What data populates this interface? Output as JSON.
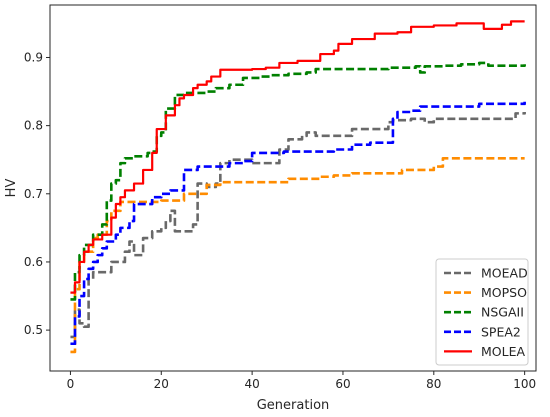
{
  "chart_data": {
    "type": "line",
    "xlabel": "Generation",
    "ylabel": "HV",
    "xlim": [
      -4.5,
      102.5
    ],
    "ylim": [
      0.44,
      0.977
    ],
    "xticks": [
      0,
      20,
      40,
      60,
      80,
      100
    ],
    "yticks": [
      0.5,
      0.6,
      0.7,
      0.8,
      0.9
    ],
    "grid": false,
    "legend_position": "bottom-right",
    "series": [
      {
        "name": "MOEAD",
        "color": "#696969",
        "style": "dashed",
        "points": [
          [
            0,
            0.49
          ],
          [
            1,
            0.53
          ],
          [
            2,
            0.51
          ],
          [
            3,
            0.505
          ],
          [
            4,
            0.575
          ],
          [
            5,
            0.585
          ],
          [
            8,
            0.585
          ],
          [
            9,
            0.6
          ],
          [
            12,
            0.615
          ],
          [
            13,
            0.63
          ],
          [
            14,
            0.61
          ],
          [
            16,
            0.635
          ],
          [
            18,
            0.645
          ],
          [
            20,
            0.65
          ],
          [
            21,
            0.66
          ],
          [
            22,
            0.675
          ],
          [
            23,
            0.645
          ],
          [
            25,
            0.645
          ],
          [
            27,
            0.655
          ],
          [
            28,
            0.715
          ],
          [
            30,
            0.71
          ],
          [
            32,
            0.715
          ],
          [
            33,
            0.745
          ],
          [
            35,
            0.75
          ],
          [
            38,
            0.75
          ],
          [
            40,
            0.745
          ],
          [
            42,
            0.745
          ],
          [
            44,
            0.745
          ],
          [
            46,
            0.765
          ],
          [
            48,
            0.78
          ],
          [
            51,
            0.785
          ],
          [
            52,
            0.79
          ],
          [
            54,
            0.785
          ],
          [
            60,
            0.785
          ],
          [
            62,
            0.795
          ],
          [
            68,
            0.795
          ],
          [
            70,
            0.805
          ],
          [
            71,
            0.808
          ],
          [
            75,
            0.81
          ],
          [
            78,
            0.805
          ],
          [
            80,
            0.81
          ],
          [
            95,
            0.81
          ],
          [
            98,
            0.818
          ],
          [
            100,
            0.82
          ]
        ]
      },
      {
        "name": "MOPSO",
        "color": "#ff8c00",
        "style": "dashed",
        "points": [
          [
            0,
            0.468
          ],
          [
            1,
            0.56
          ],
          [
            2,
            0.6
          ],
          [
            3,
            0.615
          ],
          [
            5,
            0.635
          ],
          [
            6,
            0.64
          ],
          [
            8,
            0.66
          ],
          [
            9,
            0.675
          ],
          [
            11,
            0.688
          ],
          [
            20,
            0.69
          ],
          [
            25,
            0.7
          ],
          [
            30,
            0.713
          ],
          [
            33,
            0.717
          ],
          [
            45,
            0.717
          ],
          [
            48,
            0.722
          ],
          [
            55,
            0.725
          ],
          [
            58,
            0.727
          ],
          [
            62,
            0.73
          ],
          [
            71,
            0.73
          ],
          [
            73,
            0.735
          ],
          [
            78,
            0.735
          ],
          [
            80,
            0.74
          ],
          [
            82,
            0.752
          ],
          [
            100,
            0.752
          ]
        ]
      },
      {
        "name": "NSGAII",
        "color": "#008000",
        "style": "dashed",
        "points": [
          [
            0,
            0.545
          ],
          [
            1,
            0.585
          ],
          [
            2,
            0.61
          ],
          [
            3,
            0.625
          ],
          [
            5,
            0.64
          ],
          [
            7,
            0.655
          ],
          [
            8,
            0.69
          ],
          [
            9,
            0.715
          ],
          [
            10,
            0.72
          ],
          [
            11,
            0.745
          ],
          [
            12,
            0.752
          ],
          [
            14,
            0.755
          ],
          [
            17,
            0.76
          ],
          [
            18,
            0.762
          ],
          [
            19,
            0.785
          ],
          [
            20,
            0.79
          ],
          [
            21,
            0.825
          ],
          [
            23,
            0.845
          ],
          [
            25,
            0.848
          ],
          [
            28,
            0.848
          ],
          [
            30,
            0.85
          ],
          [
            32,
            0.855
          ],
          [
            35,
            0.86
          ],
          [
            37,
            0.86
          ],
          [
            38,
            0.87
          ],
          [
            42,
            0.872
          ],
          [
            44,
            0.874
          ],
          [
            48,
            0.876
          ],
          [
            52,
            0.878
          ],
          [
            54,
            0.883
          ],
          [
            70,
            0.885
          ],
          [
            76,
            0.887
          ],
          [
            77,
            0.878
          ],
          [
            78,
            0.887
          ],
          [
            82,
            0.888
          ],
          [
            86,
            0.89
          ],
          [
            90,
            0.892
          ],
          [
            92,
            0.888
          ],
          [
            100,
            0.89
          ]
        ]
      },
      {
        "name": "SPEA2",
        "color": "#0000ff",
        "style": "dashed",
        "points": [
          [
            0,
            0.48
          ],
          [
            1,
            0.52
          ],
          [
            2,
            0.55
          ],
          [
            3,
            0.575
          ],
          [
            4,
            0.59
          ],
          [
            5,
            0.6
          ],
          [
            6,
            0.61
          ],
          [
            7,
            0.62
          ],
          [
            8,
            0.63
          ],
          [
            10,
            0.64
          ],
          [
            11,
            0.65
          ],
          [
            13,
            0.66
          ],
          [
            14,
            0.685
          ],
          [
            18,
            0.695
          ],
          [
            20,
            0.7
          ],
          [
            22,
            0.705
          ],
          [
            25,
            0.735
          ],
          [
            28,
            0.74
          ],
          [
            33,
            0.74
          ],
          [
            35,
            0.745
          ],
          [
            38,
            0.748
          ],
          [
            40,
            0.76
          ],
          [
            47,
            0.762
          ],
          [
            55,
            0.762
          ],
          [
            58,
            0.765
          ],
          [
            62,
            0.772
          ],
          [
            66,
            0.775
          ],
          [
            70,
            0.775
          ],
          [
            71,
            0.81
          ],
          [
            72,
            0.82
          ],
          [
            75,
            0.822
          ],
          [
            77,
            0.828
          ],
          [
            85,
            0.828
          ],
          [
            90,
            0.832
          ],
          [
            95,
            0.832
          ],
          [
            100,
            0.835
          ]
        ]
      },
      {
        "name": "MOLEA",
        "color": "#ff0000",
        "style": "solid",
        "points": [
          [
            0,
            0.555
          ],
          [
            1,
            0.57
          ],
          [
            2,
            0.6
          ],
          [
            3,
            0.615
          ],
          [
            4,
            0.625
          ],
          [
            5,
            0.633
          ],
          [
            7,
            0.64
          ],
          [
            9,
            0.665
          ],
          [
            10,
            0.685
          ],
          [
            11,
            0.695
          ],
          [
            12,
            0.705
          ],
          [
            14,
            0.715
          ],
          [
            16,
            0.735
          ],
          [
            18,
            0.76
          ],
          [
            19,
            0.795
          ],
          [
            21,
            0.815
          ],
          [
            23,
            0.83
          ],
          [
            24,
            0.84
          ],
          [
            25,
            0.845
          ],
          [
            27,
            0.855
          ],
          [
            28,
            0.86
          ],
          [
            30,
            0.865
          ],
          [
            31,
            0.872
          ],
          [
            33,
            0.882
          ],
          [
            40,
            0.883
          ],
          [
            43,
            0.885
          ],
          [
            46,
            0.892
          ],
          [
            50,
            0.895
          ],
          [
            55,
            0.905
          ],
          [
            58,
            0.91
          ],
          [
            59,
            0.92
          ],
          [
            62,
            0.927
          ],
          [
            67,
            0.935
          ],
          [
            72,
            0.937
          ],
          [
            75,
            0.945
          ],
          [
            80,
            0.947
          ],
          [
            85,
            0.95
          ],
          [
            90,
            0.95
          ],
          [
            91,
            0.942
          ],
          [
            95,
            0.948
          ],
          [
            97,
            0.953
          ],
          [
            100,
            0.953
          ]
        ]
      }
    ]
  }
}
